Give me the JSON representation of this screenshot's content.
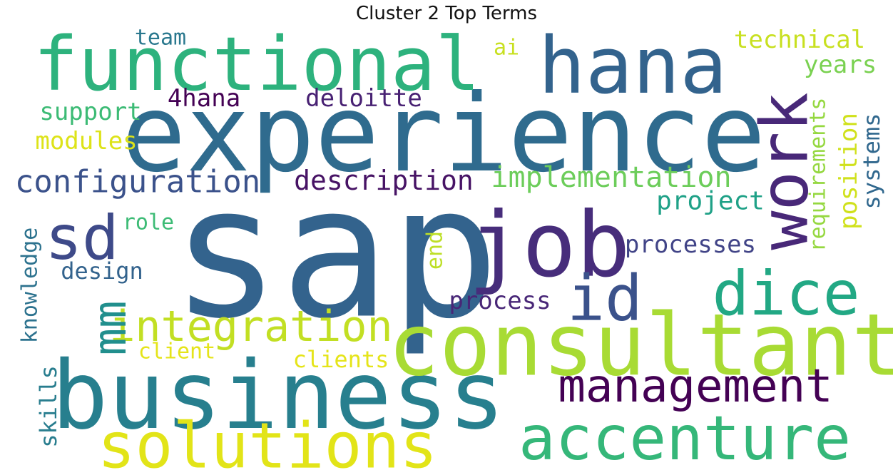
{
  "title": "Cluster 2 Top Terms",
  "words": [
    {
      "text": "sap",
      "color": "#33638d"
    },
    {
      "text": "experience",
      "color": "#2f6b8e"
    },
    {
      "text": "business",
      "color": "#277f8e"
    },
    {
      "text": "consultant",
      "color": "#a8db34"
    },
    {
      "text": "functional",
      "color": "#2db27d"
    },
    {
      "text": "hana",
      "color": "#33638d"
    },
    {
      "text": "job",
      "color": "#472d7b"
    },
    {
      "text": "work",
      "color": "#482878"
    },
    {
      "text": "solutions",
      "color": "#e2e418"
    },
    {
      "text": "accenture",
      "color": "#35b779"
    },
    {
      "text": "dice",
      "color": "#22a884"
    },
    {
      "text": "sd",
      "color": "#3e4a89"
    },
    {
      "text": "id",
      "color": "#3b528b"
    },
    {
      "text": "management",
      "color": "#440154"
    },
    {
      "text": "integration",
      "color": "#c2df23"
    },
    {
      "text": "mm",
      "color": "#218f8d"
    },
    {
      "text": "configuration",
      "color": "#3b528b"
    },
    {
      "text": "implementation",
      "color": "#6ccd5a"
    },
    {
      "text": "description",
      "color": "#471365"
    },
    {
      "text": "project",
      "color": "#1fa187"
    },
    {
      "text": "processes",
      "color": "#414487"
    },
    {
      "text": "process",
      "color": "#482677"
    },
    {
      "text": "requirements",
      "color": "#95d840"
    },
    {
      "text": "position",
      "color": "#d0e11c"
    },
    {
      "text": "systems",
      "color": "#31688e"
    },
    {
      "text": "technical",
      "color": "#c8e020"
    },
    {
      "text": "years",
      "color": "#7ad151"
    },
    {
      "text": "ai",
      "color": "#c8e020"
    },
    {
      "text": "team",
      "color": "#2a788e"
    },
    {
      "text": "4hana",
      "color": "#440154"
    },
    {
      "text": "deloitte",
      "color": "#482173"
    },
    {
      "text": "support",
      "color": "#3cbb75"
    },
    {
      "text": "modules",
      "color": "#dde318"
    },
    {
      "text": "role",
      "color": "#3cbb75"
    },
    {
      "text": "design",
      "color": "#33638d"
    },
    {
      "text": "knowledge",
      "color": "#2c728e"
    },
    {
      "text": "skills",
      "color": "#287d8e"
    },
    {
      "text": "end",
      "color": "#bddf26"
    },
    {
      "text": "client",
      "color": "#e5e419"
    },
    {
      "text": "clients",
      "color": "#e5e419"
    }
  ]
}
